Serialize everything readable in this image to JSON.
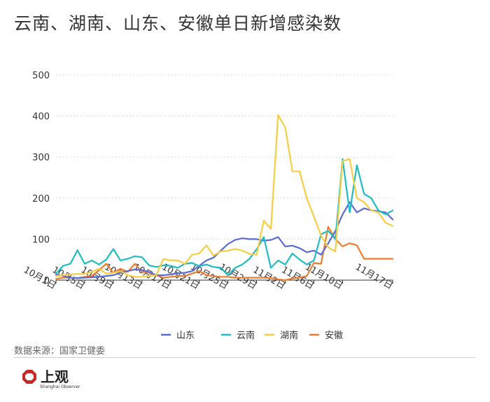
{
  "title": "云南、湖南、山东、安徽单日新增感染数",
  "source": "数据来源：国家卫健委",
  "logo": {
    "name": "上观",
    "subtitle": "Shanghai Observer"
  },
  "colors": {
    "山东": "#5a6bd8",
    "云南": "#1fbcc4",
    "湖南": "#f7cd45",
    "安徽": "#ed7d31"
  },
  "chart_data": {
    "type": "line",
    "title": "云南、湖南、山东、安徽单日新增感染数",
    "xlabel": "",
    "ylabel": "",
    "ylim": [
      0,
      500
    ],
    "yticks": [
      0,
      100,
      200,
      300,
      400,
      500
    ],
    "x_start": "10月1日",
    "xticks": [
      {
        "index": 0,
        "label": "10月1日"
      },
      {
        "index": 4,
        "label": "10月5日"
      },
      {
        "index": 8,
        "label": "10月9日"
      },
      {
        "index": 12,
        "label": "10月13日"
      },
      {
        "index": 16,
        "label": "10月17日"
      },
      {
        "index": 20,
        "label": "10月21日"
      },
      {
        "index": 24,
        "label": "10月25日"
      },
      {
        "index": 28,
        "label": "10月29日"
      },
      {
        "index": 32,
        "label": "11月2日"
      },
      {
        "index": 36,
        "label": "11月6日"
      },
      {
        "index": 40,
        "label": "11月10日"
      },
      {
        "index": 47,
        "label": "11月17日"
      }
    ],
    "grid": true,
    "legend": "bottom",
    "series": [
      {
        "name": "山东",
        "values": [
          14,
          10,
          6,
          5,
          6,
          7,
          8,
          10,
          12,
          18,
          22,
          26,
          25,
          20,
          12,
          12,
          14,
          17,
          18,
          22,
          35,
          48,
          55,
          72,
          88,
          98,
          102,
          100,
          100,
          96,
          98,
          105,
          82,
          84,
          78,
          68,
          72,
          62,
          90,
          120,
          160,
          190,
          165,
          175,
          170,
          168,
          165,
          148
        ]
      },
      {
        "name": "云南",
        "values": [
          16,
          35,
          40,
          73,
          40,
          48,
          38,
          50,
          76,
          48,
          52,
          58,
          56,
          36,
          32,
          36,
          35,
          30,
          40,
          42,
          34,
          38,
          32,
          30,
          12,
          30,
          38,
          52,
          75,
          105,
          30,
          48,
          38,
          65,
          50,
          38,
          48,
          112,
          120,
          100,
          295,
          165,
          280,
          210,
          200,
          170,
          160,
          170
        ]
      },
      {
        "name": "湖南",
        "values": [
          10,
          12,
          14,
          15,
          15,
          20,
          28,
          16,
          18,
          22,
          12,
          8,
          8,
          10,
          12,
          52,
          48,
          48,
          40,
          62,
          65,
          85,
          60,
          70,
          72,
          76,
          72,
          64,
          62,
          145,
          125,
          402,
          372,
          265,
          265,
          200,
          155,
          108,
          80,
          70,
          290,
          295,
          200,
          190,
          170,
          165,
          140,
          132
        ]
      },
      {
        "name": "安徽",
        "values": [
          3,
          6,
          6,
          5,
          8,
          10,
          24,
          40,
          18,
          28,
          20,
          40,
          20,
          18,
          12,
          6,
          8,
          10,
          10,
          16,
          22,
          12,
          10,
          8,
          8,
          6,
          6,
          6,
          6,
          6,
          5,
          2,
          0,
          4,
          6,
          10,
          42,
          40,
          130,
          100,
          82,
          90,
          85,
          52,
          52,
          52,
          52,
          52
        ]
      }
    ]
  }
}
